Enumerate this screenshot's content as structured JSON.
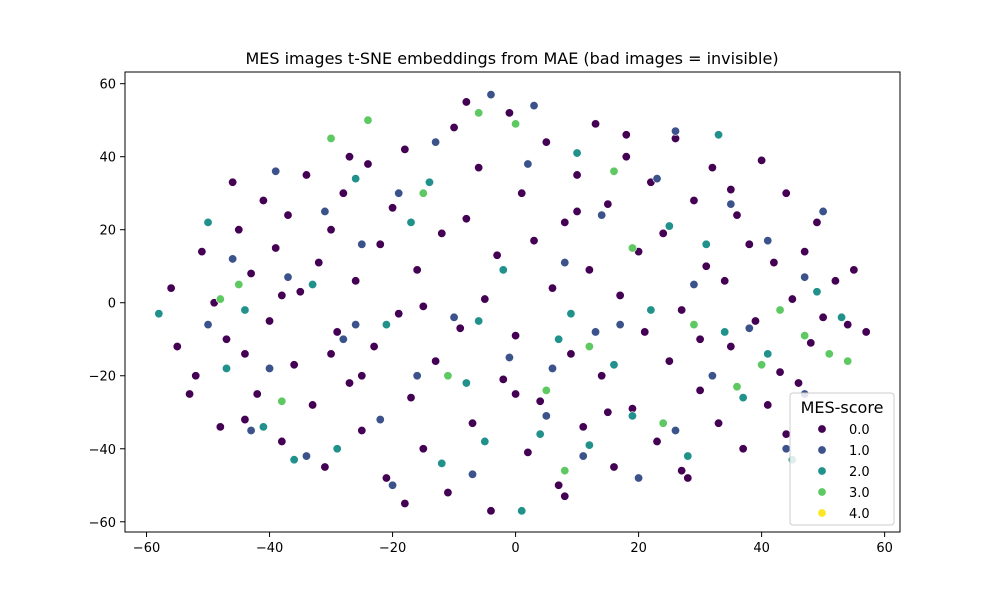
{
  "chart_data": {
    "type": "scatter",
    "title": "MES images t-SNE embeddings from MAE (bad images = invisible)",
    "xlabel": "",
    "ylabel": "",
    "xlim": [
      -63.5,
      62.5
    ],
    "ylim": [
      -62.8,
      63.2
    ],
    "x_ticks": [
      -60,
      -40,
      -20,
      0,
      20,
      40,
      60
    ],
    "y_ticks": [
      -60,
      -40,
      -20,
      0,
      20,
      40,
      60
    ],
    "x_tick_labels": [
      "−60",
      "−40",
      "−20",
      "0",
      "20",
      "40",
      "60"
    ],
    "y_tick_labels": [
      "−60",
      "−40",
      "−20",
      "0",
      "20",
      "40",
      "60"
    ],
    "grid": false,
    "legend": {
      "title": "MES-score",
      "placement": "lower right",
      "entries": [
        {
          "label": "0.0",
          "color": "#440154"
        },
        {
          "label": "1.0",
          "color": "#3b528b"
        },
        {
          "label": "2.0",
          "color": "#21918c"
        },
        {
          "label": "3.0",
          "color": "#5ec962"
        },
        {
          "label": "4.0",
          "color": "#fde725"
        }
      ]
    },
    "series": [
      {
        "name": "0.0",
        "color": "#440154",
        "points": [
          [
            -56,
            4
          ],
          [
            -55,
            -12
          ],
          [
            -52,
            -20
          ],
          [
            -51,
            14
          ],
          [
            -49,
            0
          ],
          [
            -47,
            -10
          ],
          [
            -46,
            33
          ],
          [
            -45,
            20
          ],
          [
            -44,
            -32
          ],
          [
            -43,
            8
          ],
          [
            -42,
            -25
          ],
          [
            -41,
            28
          ],
          [
            -40,
            -5
          ],
          [
            -39,
            15
          ],
          [
            -38,
            -38
          ],
          [
            -37,
            24
          ],
          [
            -36,
            -17
          ],
          [
            -35,
            3
          ],
          [
            -34,
            35
          ],
          [
            -33,
            -28
          ],
          [
            -32,
            11
          ],
          [
            -31,
            -45
          ],
          [
            -30,
            20
          ],
          [
            -29,
            -8
          ],
          [
            -28,
            30
          ],
          [
            -27,
            -22
          ],
          [
            -26,
            6
          ],
          [
            -25,
            -35
          ],
          [
            -24,
            38
          ],
          [
            -23,
            -12
          ],
          [
            -22,
            16
          ],
          [
            -21,
            -48
          ],
          [
            -20,
            26
          ],
          [
            -19,
            -3
          ],
          [
            -18,
            42
          ],
          [
            -17,
            -26
          ],
          [
            -16,
            9
          ],
          [
            -15,
            -40
          ],
          [
            -14,
            33
          ],
          [
            -13,
            -16
          ],
          [
            -12,
            19
          ],
          [
            -11,
            -52
          ],
          [
            -10,
            48
          ],
          [
            -9,
            -7
          ],
          [
            -8,
            23
          ],
          [
            -7,
            -33
          ],
          [
            -6,
            37
          ],
          [
            -5,
            1
          ],
          [
            -4,
            -57
          ],
          [
            -3,
            13
          ],
          [
            -2,
            -21
          ],
          [
            -1,
            52
          ],
          [
            0,
            -9
          ],
          [
            1,
            30
          ],
          [
            2,
            -41
          ],
          [
            3,
            17
          ],
          [
            4,
            -27
          ],
          [
            5,
            44
          ],
          [
            6,
            4
          ],
          [
            7,
            -50
          ],
          [
            8,
            22
          ],
          [
            9,
            -14
          ],
          [
            10,
            35
          ],
          [
            11,
            -34
          ],
          [
            12,
            9
          ],
          [
            13,
            49
          ],
          [
            14,
            -20
          ],
          [
            15,
            27
          ],
          [
            16,
            -45
          ],
          [
            17,
            2
          ],
          [
            18,
            40
          ],
          [
            19,
            -29
          ],
          [
            20,
            14
          ],
          [
            21,
            -8
          ],
          [
            22,
            33
          ],
          [
            23,
            -38
          ],
          [
            24,
            19
          ],
          [
            25,
            -16
          ],
          [
            26,
            45
          ],
          [
            27,
            -2
          ],
          [
            28,
            -48
          ],
          [
            29,
            28
          ],
          [
            30,
            -24
          ],
          [
            31,
            10
          ],
          [
            32,
            37
          ],
          [
            33,
            -33
          ],
          [
            34,
            6
          ],
          [
            35,
            -12
          ],
          [
            36,
            24
          ],
          [
            37,
            -40
          ],
          [
            38,
            16
          ],
          [
            39,
            -5
          ],
          [
            40,
            39
          ],
          [
            41,
            -28
          ],
          [
            42,
            11
          ],
          [
            43,
            -19
          ],
          [
            44,
            30
          ],
          [
            45,
            1
          ],
          [
            46,
            -22
          ],
          [
            47,
            14
          ],
          [
            48,
            -11
          ],
          [
            49,
            22
          ],
          [
            50,
            -4
          ],
          [
            52,
            6
          ],
          [
            54,
            -6
          ],
          [
            55,
            9
          ],
          [
            57,
            -8
          ],
          [
            -53,
            -25
          ],
          [
            -48,
            -34
          ],
          [
            -38,
            2
          ],
          [
            -27,
            40
          ],
          [
            -18,
            -55
          ],
          [
            -8,
            55
          ],
          [
            8,
            -53
          ],
          [
            18,
            46
          ],
          [
            27,
            -46
          ],
          [
            35,
            31
          ],
          [
            44,
            -36
          ],
          [
            -44,
            -14
          ],
          [
            -30,
            -14
          ],
          [
            -15,
            -1
          ],
          [
            0,
            -25
          ],
          [
            15,
            -30
          ],
          [
            30,
            -10
          ],
          [
            -25,
            -20
          ],
          [
            10,
            25
          ]
        ]
      },
      {
        "name": "1.0",
        "color": "#3b528b",
        "points": [
          [
            -50,
            -6
          ],
          [
            -46,
            12
          ],
          [
            -43,
            -35
          ],
          [
            -40,
            -18
          ],
          [
            -37,
            7
          ],
          [
            -34,
            -42
          ],
          [
            -31,
            25
          ],
          [
            -28,
            -10
          ],
          [
            -25,
            16
          ],
          [
            -22,
            -32
          ],
          [
            -19,
            30
          ],
          [
            -16,
            -20
          ],
          [
            -13,
            44
          ],
          [
            -10,
            -4
          ],
          [
            -7,
            -47
          ],
          [
            -4,
            57
          ],
          [
            -1,
            -15
          ],
          [
            2,
            38
          ],
          [
            5,
            -31
          ],
          [
            8,
            11
          ],
          [
            11,
            -42
          ],
          [
            14,
            24
          ],
          [
            17,
            -6
          ],
          [
            20,
            -48
          ],
          [
            23,
            34
          ],
          [
            26,
            -35
          ],
          [
            29,
            5
          ],
          [
            32,
            -20
          ],
          [
            35,
            27
          ],
          [
            38,
            -7
          ],
          [
            41,
            17
          ],
          [
            44,
            -40
          ],
          [
            47,
            7
          ],
          [
            50,
            25
          ],
          [
            -39,
            36
          ],
          [
            -20,
            -50
          ],
          [
            3,
            54
          ],
          [
            26,
            47
          ],
          [
            47,
            -25
          ],
          [
            -26,
            -6
          ],
          [
            13,
            -8
          ],
          [
            6,
            -18
          ]
        ]
      },
      {
        "name": "2.0",
        "color": "#21918c",
        "points": [
          [
            -58,
            -3
          ],
          [
            -50,
            22
          ],
          [
            -47,
            -18
          ],
          [
            -41,
            -34
          ],
          [
            -36,
            -43
          ],
          [
            -33,
            5
          ],
          [
            -29,
            -40
          ],
          [
            -26,
            34
          ],
          [
            -21,
            -6
          ],
          [
            -17,
            22
          ],
          [
            -12,
            -44
          ],
          [
            -8,
            -22
          ],
          [
            -5,
            -38
          ],
          [
            -2,
            9
          ],
          [
            1,
            -57
          ],
          [
            4,
            -36
          ],
          [
            7,
            -10
          ],
          [
            10,
            41
          ],
          [
            12,
            -39
          ],
          [
            16,
            -17
          ],
          [
            19,
            -31
          ],
          [
            22,
            -2
          ],
          [
            25,
            21
          ],
          [
            28,
            -42
          ],
          [
            31,
            16
          ],
          [
            34,
            -8
          ],
          [
            37,
            -26
          ],
          [
            41,
            -14
          ],
          [
            45,
            -43
          ],
          [
            49,
            3
          ],
          [
            53,
            -4
          ],
          [
            -14,
            33
          ],
          [
            -6,
            -5
          ],
          [
            9,
            -3
          ],
          [
            -44,
            -2
          ],
          [
            33,
            46
          ]
        ]
      },
      {
        "name": "3.0",
        "color": "#5ec962",
        "points": [
          [
            -48,
            1
          ],
          [
            -45,
            5
          ],
          [
            -38,
            -27
          ],
          [
            -24,
            50
          ],
          [
            -15,
            30
          ],
          [
            -6,
            52
          ],
          [
            0,
            49
          ],
          [
            5,
            -24
          ],
          [
            8,
            -46
          ],
          [
            12,
            -12
          ],
          [
            19,
            15
          ],
          [
            24,
            -33
          ],
          [
            29,
            -6
          ],
          [
            36,
            -23
          ],
          [
            40,
            -17
          ],
          [
            43,
            -2
          ],
          [
            47,
            -9
          ],
          [
            51,
            -14
          ],
          [
            54,
            -16
          ],
          [
            -30,
            45
          ],
          [
            -11,
            -20
          ],
          [
            16,
            36
          ]
        ]
      }
    ]
  }
}
